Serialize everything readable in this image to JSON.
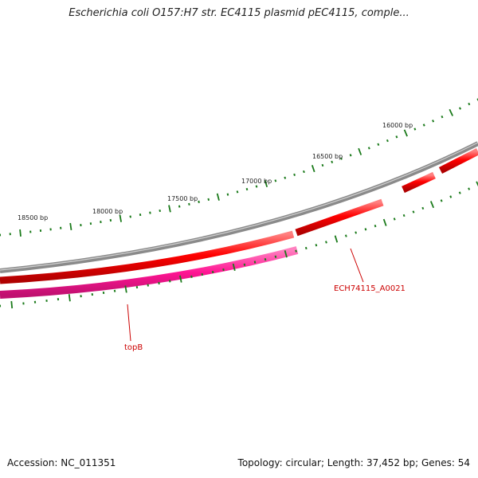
{
  "title": "Escherichia coli O157:H7 str. EC4115 plasmid pEC4115, comple...",
  "footer": {
    "accession": "Accession: NC_011351",
    "summary": "Topology: circular; Length: 37,452 bp; Genes: 54"
  },
  "genome": {
    "length_bp": 37452,
    "topology": "circular",
    "gene_count": 54
  },
  "scale": {
    "labels": [
      "16000 bp",
      "16500 bp",
      "17000 bp",
      "17500 bp",
      "18000 bp",
      "18500 bp"
    ]
  },
  "gene_labels": {
    "gene_a": "ECH74115_A0021",
    "gene_b": "topB"
  },
  "colors": {
    "backbone": "#8a8a8a",
    "forward_gene": "#ff0000",
    "reverse_gene": "#ff1493",
    "ticks": "#1a7a1a",
    "label_line": "#cc0000",
    "label_text": "#cc0000"
  }
}
